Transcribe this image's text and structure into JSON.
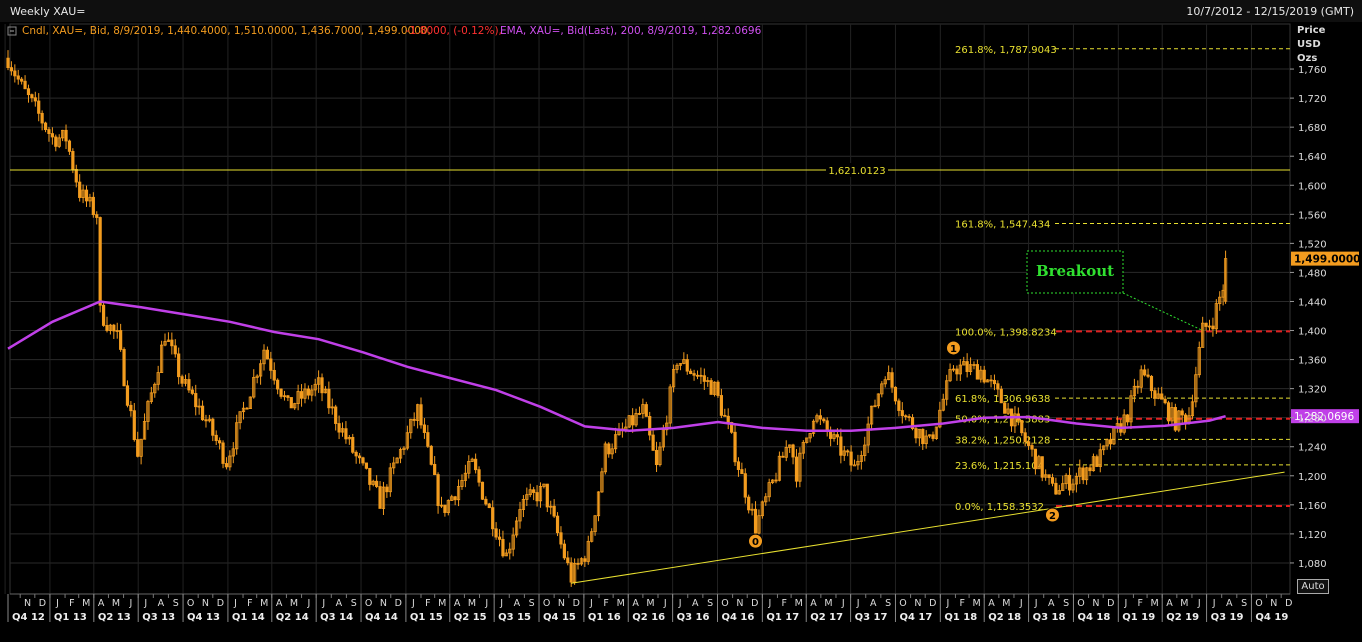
{
  "window": {
    "title": "Weekly XAU=",
    "date_range": "10/7/2012 - 12/15/2019 (GMT)",
    "auto_label": "Auto"
  },
  "legend": {
    "candle": "Cndl, XAU=, Bid, 8/9/2019, 1,440.4000, 1,510.0000, 1,436.7000, 1,499.0000,",
    "change": "-1.8000, (-0.12%),",
    "ema": "EMA, XAU=, Bid(Last),  200, 8/9/2019, 1,282.0696"
  },
  "colors": {
    "candle": "#f39c1f",
    "ema": "#c040e8",
    "fib": "#e8e030",
    "resistance": "#e8e030",
    "support_red": "#e02020",
    "breakout": "#30e030",
    "change_red": "#ff3030",
    "price_tag": "#f39c1f",
    "ema_tag": "#c040e8"
  },
  "chart_data": {
    "type": "candlestick",
    "title": "Weekly XAU=",
    "ylabel": "Price USD Ozs",
    "ylim": [
      1040,
      1800
    ],
    "y_ticks": [
      "1,080",
      "1,120",
      "1,160",
      "1,200",
      "1,240",
      "1,280",
      "1,320",
      "1,360",
      "1,400",
      "1,440",
      "1,480",
      "1,520",
      "1,560",
      "1,600",
      "1,640",
      "1,680",
      "1,720",
      "1,760"
    ],
    "y_tick_values": [
      1080,
      1120,
      1160,
      1200,
      1240,
      1280,
      1320,
      1360,
      1400,
      1440,
      1480,
      1520,
      1560,
      1600,
      1640,
      1680,
      1720,
      1760
    ],
    "month_labels": [
      "N",
      "D",
      "J",
      "F",
      "M",
      "A",
      "M",
      "J",
      "J",
      "A",
      "S",
      "O",
      "N",
      "D",
      "J",
      "F",
      "M",
      "A",
      "M",
      "J",
      "J",
      "A",
      "S",
      "O",
      "N",
      "D",
      "J",
      "F",
      "M",
      "A",
      "M",
      "J",
      "J",
      "A",
      "S",
      "O",
      "N",
      "D",
      "J",
      "F",
      "M",
      "A",
      "M",
      "J",
      "J",
      "A",
      "S",
      "O",
      "N",
      "D",
      "J",
      "F",
      "M",
      "A",
      "M",
      "J",
      "J",
      "A",
      "S",
      "O",
      "N",
      "D",
      "J",
      "F",
      "M",
      "A",
      "M",
      "J",
      "J",
      "A",
      "S",
      "O",
      "N",
      "D",
      "J",
      "F",
      "M",
      "A",
      "M",
      "J",
      "J",
      "A",
      "S",
      "O",
      "N",
      "D"
    ],
    "quarter_labels": [
      "Q4 12",
      "Q1 13",
      "Q2 13",
      "Q3 13",
      "Q4 13",
      "Q1 14",
      "Q2 14",
      "Q3 14",
      "Q4 14",
      "Q1 15",
      "Q2 15",
      "Q3 15",
      "Q4 15",
      "Q1 16",
      "Q2 16",
      "Q3 16",
      "Q4 16",
      "Q1 17",
      "Q2 17",
      "Q3 17",
      "Q4 17",
      "Q1 18",
      "Q2 18",
      "Q3 18",
      "Q4 18",
      "Q1 19",
      "Q2 19",
      "Q3 19",
      "Q4 19"
    ],
    "anchors": [
      [
        "2012-10-07",
        1775
      ],
      [
        "2012-11-04",
        1735
      ],
      [
        "2012-12-02",
        1705
      ],
      [
        "2013-01-06",
        1665
      ],
      [
        "2013-02-03",
        1665
      ],
      [
        "2013-03-03",
        1590
      ],
      [
        "2013-04-07",
        1560
      ],
      [
        "2013-04-14",
        1425
      ],
      [
        "2013-05-19",
        1390
      ],
      [
        "2013-06-30",
        1230
      ],
      [
        "2013-08-25",
        1395
      ],
      [
        "2013-09-29",
        1330
      ],
      [
        "2013-11-10",
        1285
      ],
      [
        "2013-12-29",
        1220
      ],
      [
        "2014-03-16",
        1375
      ],
      [
        "2014-05-04",
        1295
      ],
      [
        "2014-07-06",
        1325
      ],
      [
        "2014-09-21",
        1225
      ],
      [
        "2014-11-09",
        1165
      ],
      [
        "2015-01-25",
        1290
      ],
      [
        "2015-03-15",
        1150
      ],
      [
        "2015-05-17",
        1215
      ],
      [
        "2015-07-26",
        1090
      ],
      [
        "2015-08-23",
        1160
      ],
      [
        "2015-10-11",
        1180
      ],
      [
        "2015-12-06",
        1060
      ],
      [
        "2016-01-10",
        1100
      ],
      [
        "2016-02-14",
        1235
      ],
      [
        "2016-05-01",
        1290
      ],
      [
        "2016-05-29",
        1210
      ],
      [
        "2016-07-10",
        1360
      ],
      [
        "2016-09-25",
        1320
      ],
      [
        "2016-10-23",
        1265
      ],
      [
        "2016-12-18",
        1130
      ],
      [
        "2017-02-26",
        1250
      ],
      [
        "2017-03-12",
        1205
      ],
      [
        "2017-04-16",
        1285
      ],
      [
        "2017-07-09",
        1210
      ],
      [
        "2017-09-10",
        1345
      ],
      [
        "2017-10-22",
        1280
      ],
      [
        "2017-12-10",
        1245
      ],
      [
        "2018-01-28",
        1350
      ],
      [
        "2018-03-25",
        1345
      ],
      [
        "2018-05-20",
        1290
      ],
      [
        "2018-08-19",
        1180
      ],
      [
        "2018-09-30",
        1195
      ],
      [
        "2018-11-25",
        1225
      ],
      [
        "2019-01-20",
        1285
      ],
      [
        "2019-02-17",
        1340
      ],
      [
        "2019-04-28",
        1275
      ],
      [
        "2019-05-26",
        1285
      ],
      [
        "2019-06-23",
        1400
      ],
      [
        "2019-07-14",
        1415
      ],
      [
        "2019-08-04",
        1460
      ],
      [
        "2019-08-09",
        1499
      ]
    ],
    "last_candle": {
      "date": "2019-08-09",
      "open": 1440.4,
      "high": 1510.0,
      "low": 1436.7,
      "close": 1499.0
    },
    "ema": {
      "name": "EMA 200",
      "points": [
        [
          "2012-10-07",
          1375
        ],
        [
          "2013-01-06",
          1412
        ],
        [
          "2013-04-14",
          1440
        ],
        [
          "2013-07-07",
          1432
        ],
        [
          "2013-10-06",
          1422
        ],
        [
          "2014-01-05",
          1412
        ],
        [
          "2014-04-06",
          1398
        ],
        [
          "2014-07-06",
          1388
        ],
        [
          "2014-10-05",
          1370
        ],
        [
          "2015-01-04",
          1350
        ],
        [
          "2015-04-05",
          1334
        ],
        [
          "2015-07-05",
          1318
        ],
        [
          "2015-10-04",
          1295
        ],
        [
          "2016-01-03",
          1268
        ],
        [
          "2016-04-03",
          1262
        ],
        [
          "2016-07-03",
          1266
        ],
        [
          "2016-10-02",
          1274
        ],
        [
          "2017-01-01",
          1266
        ],
        [
          "2017-04-02",
          1262
        ],
        [
          "2017-07-02",
          1262
        ],
        [
          "2017-10-01",
          1266
        ],
        [
          "2018-01-07",
          1272
        ],
        [
          "2018-04-01",
          1280
        ],
        [
          "2018-07-01",
          1281
        ],
        [
          "2018-10-07",
          1272
        ],
        [
          "2019-01-06",
          1266
        ],
        [
          "2019-04-07",
          1269
        ],
        [
          "2019-07-07",
          1276
        ],
        [
          "2019-08-09",
          1282.0696
        ]
      ]
    },
    "resistance": {
      "value": 1621.0123,
      "label": "1,621.0123"
    },
    "trendline": {
      "from": [
        "2015-12-06",
        1052
      ],
      "to": [
        "2019-12-08",
        1205
      ]
    },
    "fibonacci": [
      {
        "label": "261.8%, 1,787.9043",
        "value": 1787.9043,
        "red": false
      },
      {
        "label": "161.8%, 1,547.434",
        "value": 1547.434,
        "red": false
      },
      {
        "label": "100.0%, 1,398.8234",
        "value": 1398.8234,
        "red": true
      },
      {
        "label": "61.8%, 1,306.9638",
        "value": 1306.9638,
        "red": false
      },
      {
        "label": "50.0%, 1,278.5883",
        "value": 1278.5883,
        "red": true
      },
      {
        "label": "38.2%, 1,250.2128",
        "value": 1250.2128,
        "red": false
      },
      {
        "label": "23.6%, 1,215.104",
        "value": 1215.104,
        "red": false
      },
      {
        "label": "0.0%, 1,158.3532",
        "value": 1158.3532,
        "red": true
      }
    ],
    "wave_markers": [
      {
        "label": "0",
        "date": "2016-12-18",
        "value": 1110
      },
      {
        "label": "1",
        "date": "2018-01-28",
        "value": 1376
      },
      {
        "label": "2",
        "date": "2018-08-19",
        "value": 1146
      }
    ],
    "annotation": {
      "text": "Breakout",
      "point": [
        "2019-06-23",
        1400
      ]
    },
    "price_tag": "1,499.0000",
    "ema_tag": "1,282.0696",
    "grid": true
  }
}
